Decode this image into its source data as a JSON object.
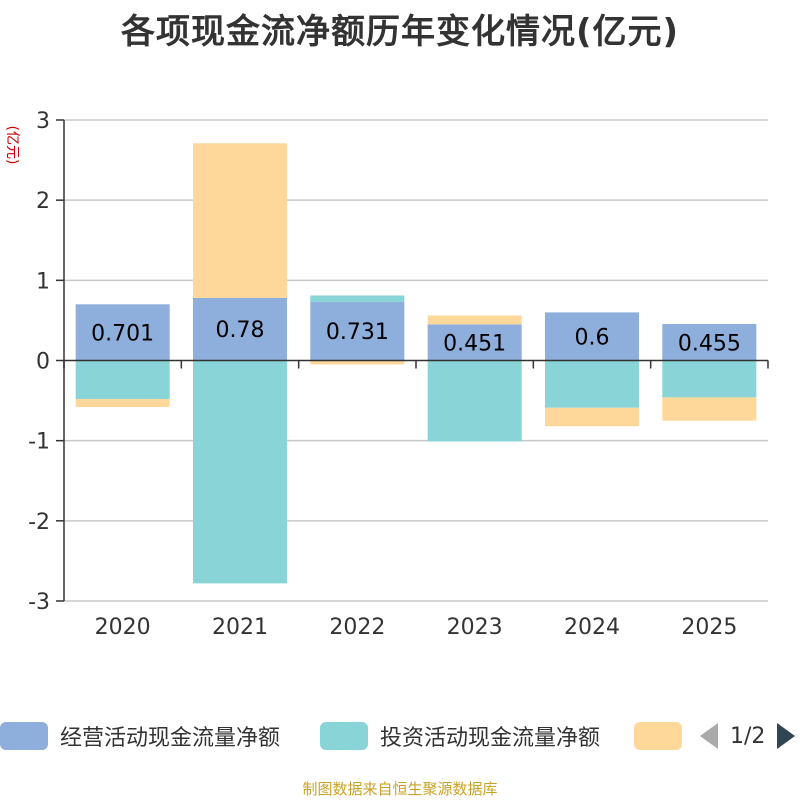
{
  "chart_data": {
    "type": "bar",
    "stacked": true,
    "title": "各项现金流净额历年变化情况(亿元)",
    "ylabel": "(亿元)",
    "categories": [
      "2020",
      "2021",
      "2022",
      "2023",
      "2024",
      "2025"
    ],
    "ylim": [
      -3,
      3
    ],
    "yticks": [
      3,
      2,
      1,
      0,
      -1,
      -2,
      -3
    ],
    "series": [
      {
        "name": "经营活动现金流量净额",
        "color": "#8eaedc",
        "values": [
          0.701,
          0.78,
          0.731,
          0.451,
          0.6,
          0.455
        ],
        "labels": [
          "0.701",
          "0.78",
          "0.731",
          "0.451",
          "0.6",
          "0.455"
        ]
      },
      {
        "name": "投资活动现金流量净额",
        "color": "#88d4d7",
        "values": [
          -0.48,
          -2.78,
          0.08,
          -1.01,
          -0.59,
          -0.46
        ]
      },
      {
        "name": "",
        "color": "#fdd89a",
        "values": [
          -0.1,
          1.93,
          -0.05,
          0.11,
          -0.23,
          -0.29
        ]
      }
    ],
    "legend_position": "bottom",
    "grid": true
  },
  "legend": {
    "pager_text": "1/2"
  },
  "footer": {
    "source": "制图数据来自恒生聚源数据库"
  }
}
